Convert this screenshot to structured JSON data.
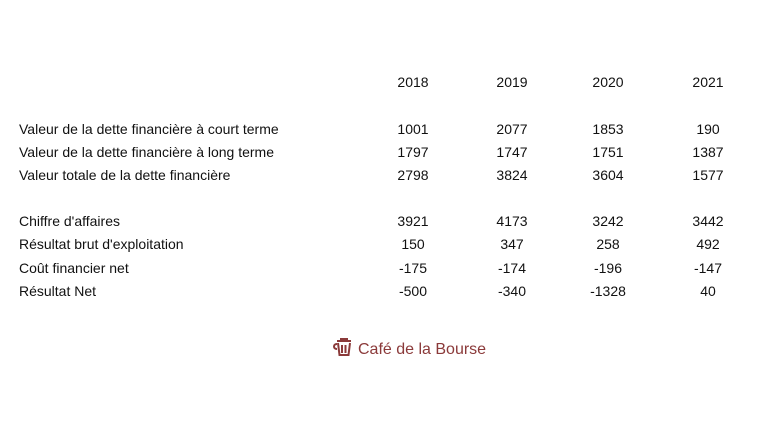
{
  "years": [
    "2018",
    "2019",
    "2020",
    "2021"
  ],
  "rows": [
    {
      "label": "Valeur de la dette financière à court terme",
      "values": [
        "1001",
        "2077",
        "1853",
        "190"
      ]
    },
    {
      "label": "Valeur de la dette financière à long terme",
      "values": [
        "1797",
        "1747",
        "1751",
        "1387"
      ]
    },
    {
      "label": "Valeur totale de la dette financière",
      "values": [
        "2798",
        "3824",
        "3604",
        "1577"
      ]
    },
    {
      "label": "Chiffre d'affaires",
      "values": [
        "3921",
        "4173",
        "3242",
        "3442"
      ]
    },
    {
      "label": "Résultat brut d'exploitation",
      "values": [
        "150",
        "347",
        "258",
        "492"
      ]
    },
    {
      "label": "Coût financier net",
      "values": [
        "-175",
        "-174",
        "-196",
        "-147"
      ]
    },
    {
      "label": "Résultat Net",
      "values": [
        "-500",
        "-340",
        "-1328",
        "40"
      ]
    }
  ],
  "logo": {
    "text": "Café de la Bourse",
    "icon": "coffee-cup-icon",
    "color": "#8b3a3a"
  }
}
